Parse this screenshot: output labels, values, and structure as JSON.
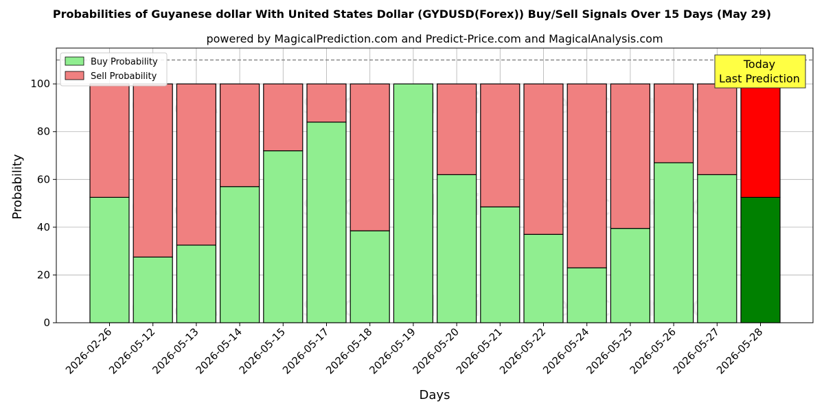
{
  "title": "Probabilities of Guyanese dollar With United States Dollar (GYDUSD(Forex)) Buy/Sell Signals Over 15 Days (May 29)",
  "subtitle": "powered by MagicalPrediction.com and Predict-Price.com and MagicalAnalysis.com",
  "watermarks": [
    "MagicalAnalysis.com",
    "MagicalPrediction.com"
  ],
  "today_box": {
    "line1": "Today",
    "line2": "Last Prediction"
  },
  "colors": {
    "buy": "#90EE90",
    "sell": "#F08080",
    "today_buy": "#008000",
    "today_sell": "#FF0000",
    "today_box": "#FFFF44"
  },
  "chart_data": {
    "type": "bar",
    "stacked": true,
    "xlabel": "Days",
    "ylabel": "Probability",
    "ylim": [
      0,
      115
    ],
    "yticks": [
      0,
      20,
      40,
      60,
      80,
      100
    ],
    "reference_line": 110,
    "grid": true,
    "legend_position": "top-left",
    "categories": [
      "2026-02-26",
      "2026-05-12",
      "2026-05-13",
      "2026-05-14",
      "2026-05-15",
      "2026-05-17",
      "2026-05-18",
      "2026-05-19",
      "2026-05-20",
      "2026-05-21",
      "2026-05-22",
      "2026-05-24",
      "2026-05-25",
      "2026-05-26",
      "2026-05-27",
      "2026-05-28"
    ],
    "series": [
      {
        "name": "Buy Probability",
        "values": [
          52.5,
          27.5,
          32.5,
          57.0,
          72.0,
          84.0,
          38.5,
          100.0,
          62.0,
          48.5,
          37.0,
          23.0,
          39.5,
          67.0,
          62.0,
          52.5
        ]
      },
      {
        "name": "Sell Probability",
        "values": [
          47.5,
          72.5,
          67.5,
          43.0,
          28.0,
          16.0,
          61.5,
          0.0,
          38.0,
          51.5,
          63.0,
          77.0,
          60.5,
          33.0,
          38.0,
          47.5
        ]
      }
    ]
  }
}
